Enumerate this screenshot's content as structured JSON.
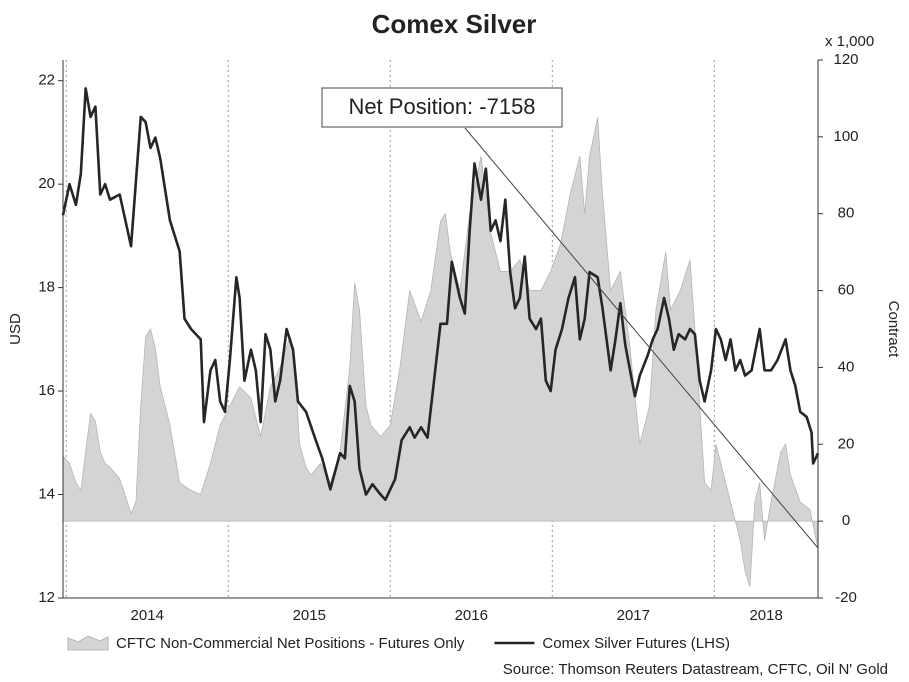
{
  "chart_data": {
    "type": "line",
    "title": "Comex Silver",
    "y_label": "USD",
    "y2_label": "Contract",
    "y2_unit": "x 1,000",
    "annotation": "Net Position: -7158",
    "source": "Source: Thomson Reuters Datastream, CFTC, Oil N' Gold",
    "xlim": [
      2013.98,
      2018.64
    ],
    "xticks": [
      2014,
      2015,
      2016,
      2017,
      2018
    ],
    "ylim": [
      12,
      22.4
    ],
    "yticks": [
      12,
      14,
      16,
      18,
      20,
      22
    ],
    "y2lim": [
      -20,
      120
    ],
    "y2ticks": [
      -20,
      0,
      20,
      40,
      60,
      80,
      100,
      120
    ],
    "grid": true,
    "legend": "bottom",
    "series": [
      {
        "name": "CFTC Non-Commercial Net Positions - Futures Only",
        "type": "area",
        "axis": "y2",
        "color": "#d4d4d4",
        "x": [
          2013.98,
          2014.02,
          2014.06,
          2014.09,
          2014.12,
          2014.15,
          2014.18,
          2014.21,
          2014.24,
          2014.27,
          2014.33,
          2014.4,
          2014.43,
          2014.46,
          2014.49,
          2014.52,
          2014.55,
          2014.58,
          2014.64,
          2014.7,
          2014.77,
          2014.83,
          2014.89,
          2014.95,
          2015.01,
          2015.07,
          2015.14,
          2015.2,
          2015.26,
          2015.32,
          2015.38,
          2015.41,
          2015.44,
          2015.48,
          2015.51,
          2015.57,
          2015.63,
          2015.69,
          2015.75,
          2015.78,
          2015.81,
          2015.85,
          2015.88,
          2015.94,
          2016.0,
          2016.06,
          2016.12,
          2016.19,
          2016.25,
          2016.31,
          2016.34,
          2016.37,
          2016.43,
          2016.49,
          2016.56,
          2016.62,
          2016.68,
          2016.74,
          2016.8,
          2016.86,
          2016.93,
          2016.99,
          2017.05,
          2017.11,
          2017.17,
          2017.2,
          2017.23,
          2017.28,
          2017.31,
          2017.36,
          2017.42,
          2017.48,
          2017.54,
          2017.6,
          2017.64,
          2017.7,
          2017.73,
          2017.79,
          2017.85,
          2017.88,
          2017.91,
          2017.94,
          2017.98,
          2018.01,
          2018.04,
          2018.1,
          2018.16,
          2018.19,
          2018.22,
          2018.25,
          2018.28,
          2018.31,
          2018.35,
          2018.41,
          2018.44,
          2018.47,
          2018.53,
          2018.59,
          2018.64
        ],
        "values": [
          17,
          15,
          10,
          8,
          18,
          28,
          26,
          18,
          15,
          14,
          11,
          2,
          5,
          30,
          48,
          50,
          45,
          35,
          25,
          10,
          8,
          7,
          15,
          25,
          30,
          35,
          32,
          22,
          35,
          40,
          48,
          42,
          20,
          14,
          12,
          15,
          10,
          18,
          40,
          62,
          55,
          30,
          25,
          22,
          25,
          40,
          60,
          52,
          60,
          78,
          80,
          70,
          60,
          80,
          95,
          75,
          65,
          65,
          68,
          60,
          60,
          65,
          72,
          85,
          95,
          80,
          95,
          105,
          85,
          60,
          65,
          45,
          20,
          30,
          55,
          70,
          55,
          60,
          68,
          50,
          30,
          10,
          8,
          20,
          15,
          5,
          -5,
          -13,
          -17,
          5,
          10,
          -5,
          5,
          18,
          20,
          12,
          5,
          3,
          -7.158
        ]
      },
      {
        "name": "Comex Silver Futures (LHS)",
        "type": "line",
        "axis": "y",
        "color": "#262626",
        "x": [
          2013.98,
          2014.02,
          2014.06,
          2014.09,
          2014.12,
          2014.15,
          2014.18,
          2014.21,
          2014.24,
          2014.27,
          2014.33,
          2014.4,
          2014.46,
          2014.49,
          2014.52,
          2014.55,
          2014.58,
          2014.64,
          2014.7,
          2014.73,
          2014.77,
          2014.83,
          2014.85,
          2014.89,
          2014.92,
          2014.95,
          2014.98,
          2015.01,
          2015.05,
          2015.07,
          2015.1,
          2015.14,
          2015.17,
          2015.2,
          2015.23,
          2015.26,
          2015.29,
          2015.32,
          2015.36,
          2015.4,
          2015.43,
          2015.48,
          2015.54,
          2015.58,
          2015.63,
          2015.69,
          2015.72,
          2015.75,
          2015.78,
          2015.81,
          2015.85,
          2015.89,
          2015.94,
          2015.97,
          2016.03,
          2016.07,
          2016.12,
          2016.15,
          2016.19,
          2016.23,
          2016.27,
          2016.31,
          2016.35,
          2016.38,
          2016.43,
          2016.46,
          2016.49,
          2016.52,
          2016.56,
          2016.59,
          2016.62,
          2016.65,
          2016.68,
          2016.71,
          2016.74,
          2016.77,
          2016.8,
          2016.83,
          2016.86,
          2016.9,
          2016.93,
          2016.96,
          2016.99,
          2017.02,
          2017.06,
          2017.1,
          2017.14,
          2017.17,
          2017.2,
          2017.23,
          2017.28,
          2017.31,
          2017.36,
          2017.39,
          2017.42,
          2017.45,
          2017.48,
          2017.51,
          2017.54,
          2017.59,
          2017.62,
          2017.65,
          2017.69,
          2017.72,
          2017.75,
          2017.78,
          2017.82,
          2017.85,
          2017.88,
          2017.91,
          2017.94,
          2017.98,
          2018.01,
          2018.04,
          2018.07,
          2018.1,
          2018.13,
          2018.16,
          2018.19,
          2018.23,
          2018.28,
          2018.31,
          2018.35,
          2018.39,
          2018.44,
          2018.47,
          2018.5,
          2018.53,
          2018.57,
          2018.6,
          2018.61,
          2018.64
        ],
        "values": [
          19.4,
          20.0,
          19.6,
          20.2,
          21.85,
          21.3,
          21.5,
          19.8,
          20.0,
          19.7,
          19.8,
          18.8,
          21.3,
          21.2,
          20.7,
          20.9,
          20.5,
          19.3,
          18.7,
          17.4,
          17.2,
          17.0,
          15.4,
          16.4,
          16.6,
          15.8,
          15.6,
          16.6,
          18.2,
          17.8,
          16.2,
          16.8,
          16.4,
          15.4,
          17.1,
          16.8,
          15.8,
          16.2,
          17.2,
          16.8,
          15.8,
          15.6,
          15.05,
          14.7,
          14.1,
          14.8,
          14.7,
          16.1,
          15.8,
          14.5,
          14.0,
          14.2,
          14.0,
          13.9,
          14.3,
          15.05,
          15.3,
          15.1,
          15.3,
          15.1,
          16.2,
          17.3,
          17.3,
          18.5,
          17.8,
          17.5,
          19.1,
          20.4,
          19.7,
          20.3,
          19.1,
          19.3,
          18.9,
          19.7,
          18.3,
          17.6,
          17.8,
          18.6,
          17.4,
          17.2,
          17.4,
          16.2,
          16.0,
          16.8,
          17.2,
          17.8,
          18.2,
          17.0,
          17.4,
          18.3,
          18.2,
          17.6,
          16.4,
          17.0,
          17.7,
          16.9,
          16.4,
          15.9,
          16.3,
          16.7,
          17.0,
          17.2,
          17.8,
          17.4,
          16.8,
          17.1,
          17.0,
          17.2,
          17.1,
          16.2,
          15.8,
          16.4,
          17.2,
          17.0,
          16.6,
          17.0,
          16.4,
          16.6,
          16.3,
          16.4,
          17.2,
          16.4,
          16.4,
          16.6,
          17.0,
          16.4,
          16.1,
          15.6,
          15.5,
          15.2,
          14.6,
          14.8
        ]
      }
    ]
  }
}
